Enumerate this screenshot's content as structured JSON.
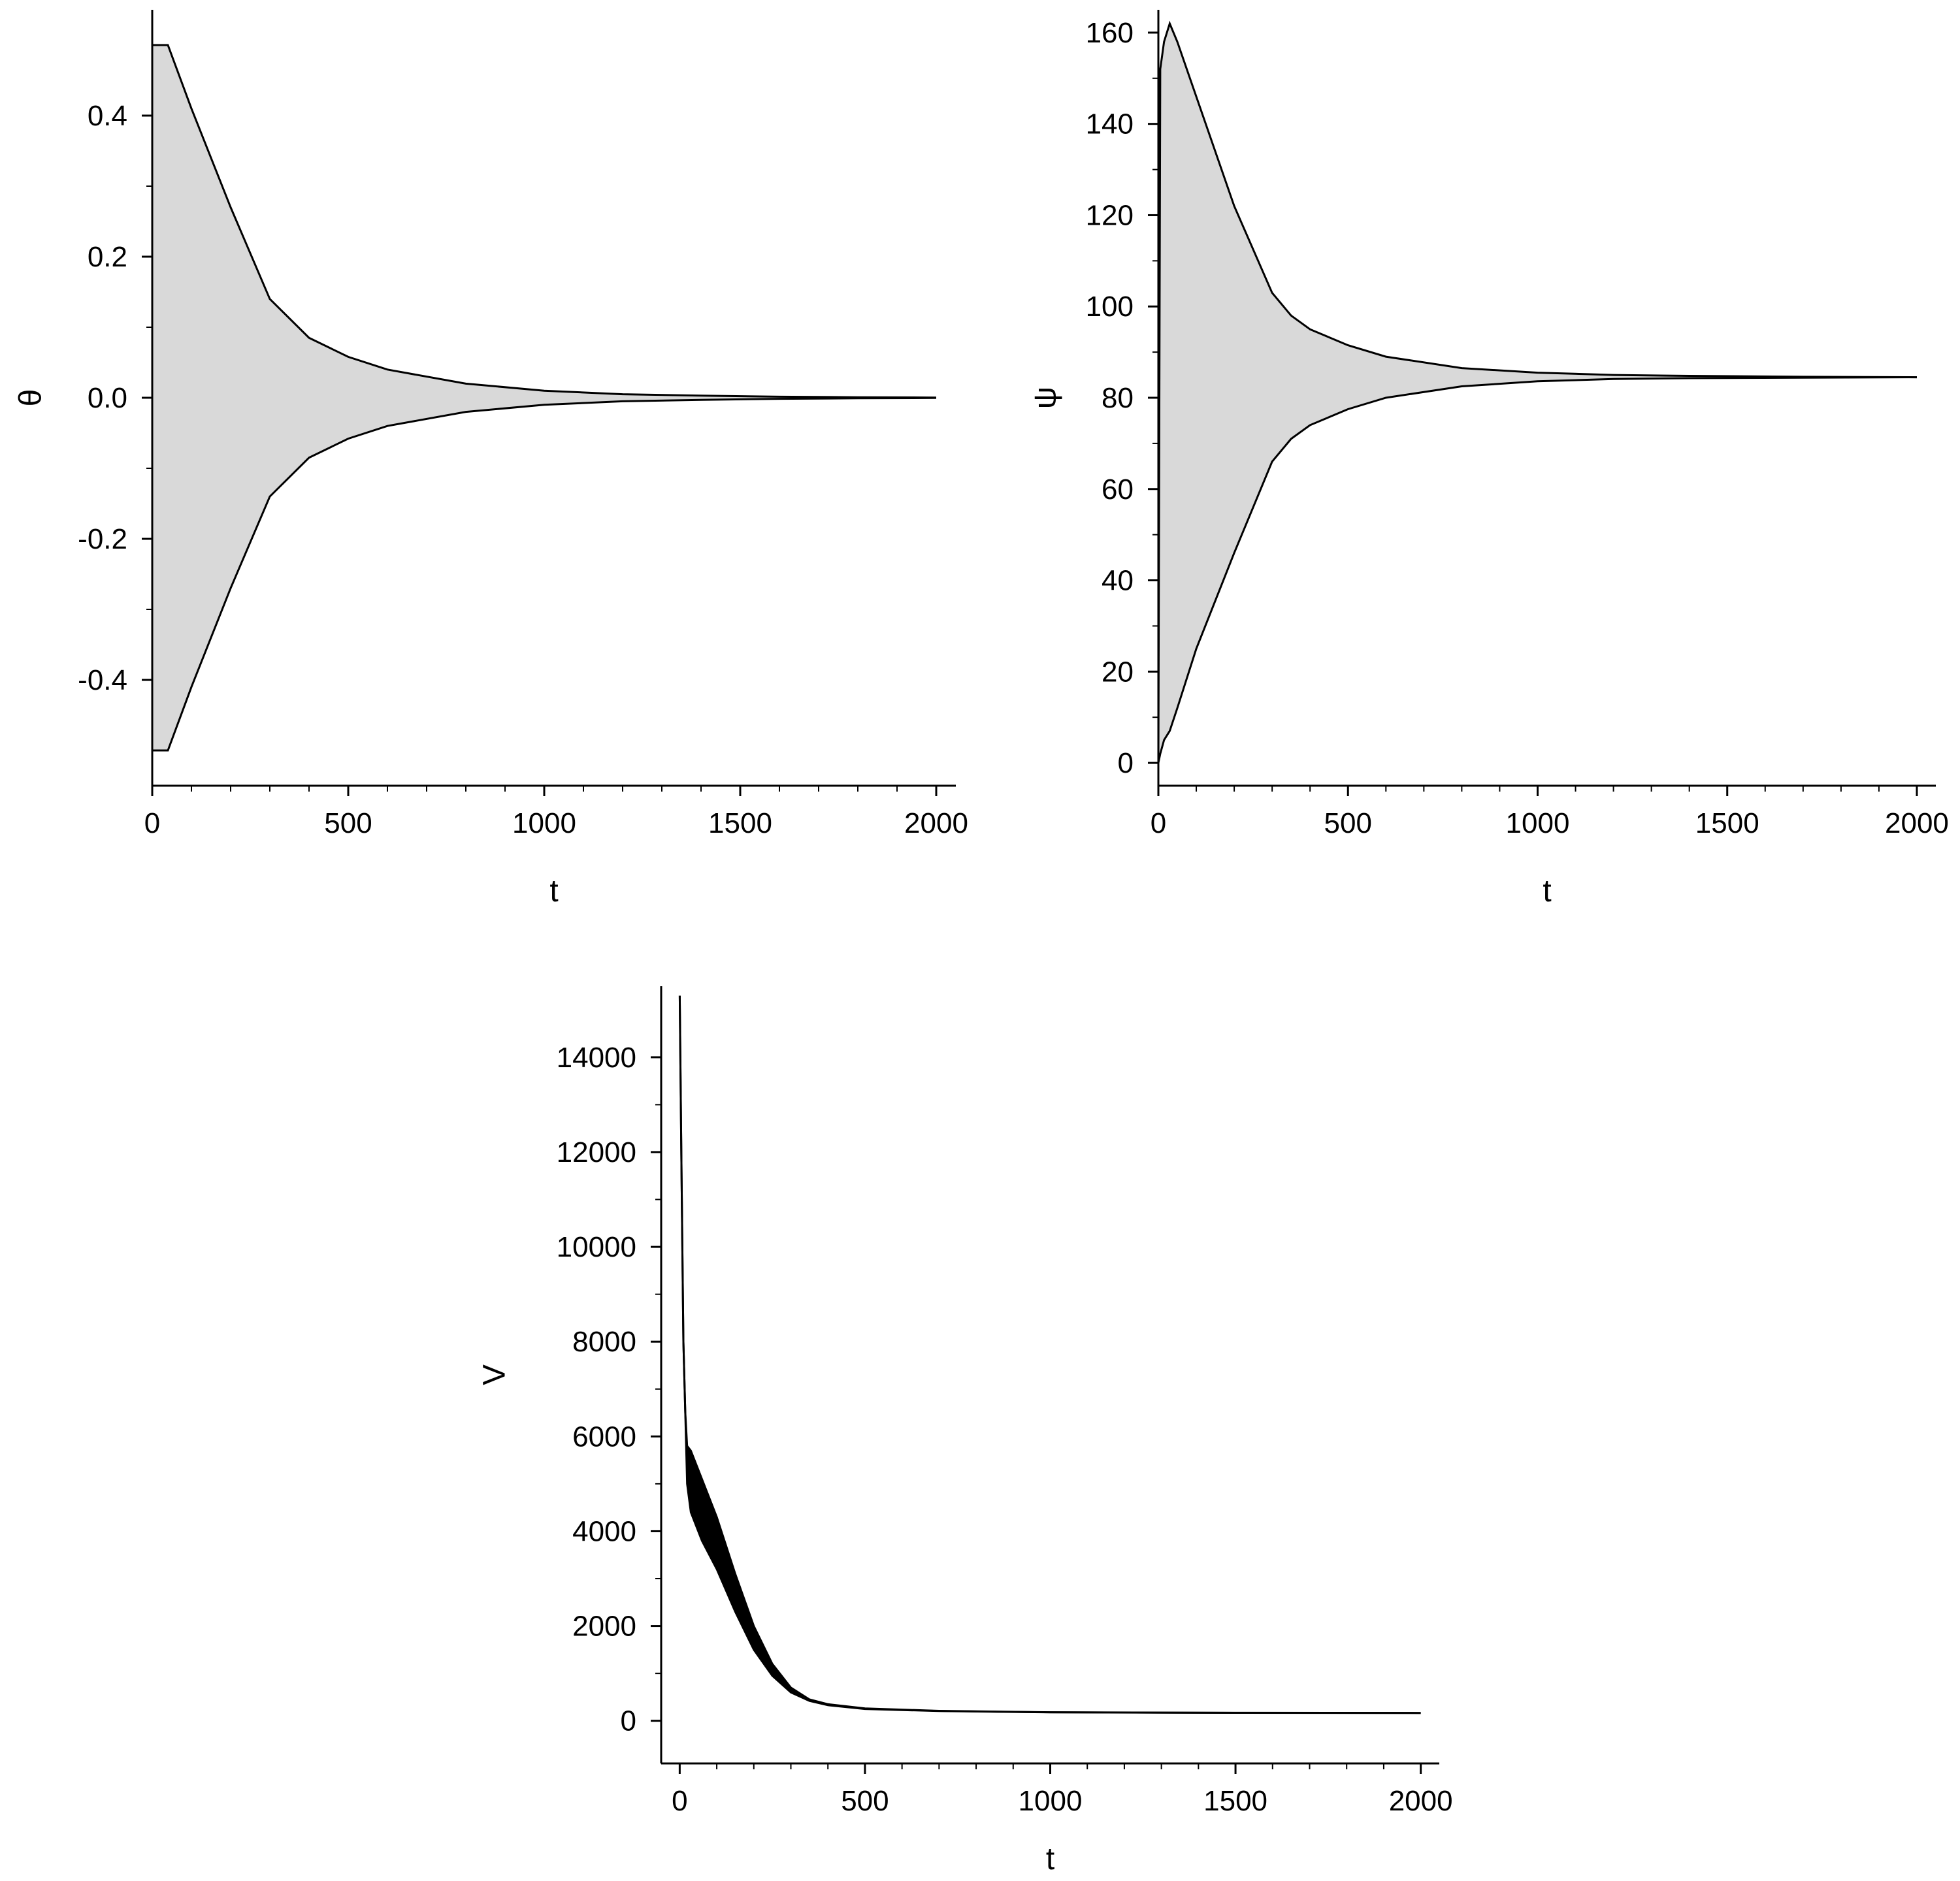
{
  "chart_data": [
    {
      "type": "area",
      "id": "theta",
      "xlabel": "t",
      "ylabel": "θ",
      "xlim": [
        0,
        2050
      ],
      "ylim": [
        -0.55,
        0.55
      ],
      "x_ticks": [
        0,
        500,
        1000,
        1500,
        2000
      ],
      "x_tick_labels": [
        "0",
        "500",
        "1000",
        "1500",
        "2000"
      ],
      "y_ticks": [
        -0.4,
        -0.2,
        0.0,
        0.2,
        0.4
      ],
      "y_tick_labels": [
        "-0.4",
        "-0.2",
        "0.0",
        "0.2",
        "0.4"
      ],
      "fill_color": "#d9d9d9",
      "line_color": "#000000",
      "grid": false,
      "series": [
        {
          "role": "upper-envelope",
          "x": [
            0,
            10,
            40,
            100,
            200,
            300,
            400,
            500,
            600,
            800,
            1000,
            1200,
            1400,
            1600,
            1800,
            2000
          ],
          "values": [
            0.5,
            0.5,
            0.5,
            0.41,
            0.27,
            0.14,
            0.085,
            0.058,
            0.04,
            0.02,
            0.01,
            0.005,
            0.003,
            0.0015,
            0.0007,
            0.0003
          ]
        },
        {
          "role": "lower-envelope",
          "x": [
            0,
            10,
            40,
            100,
            200,
            300,
            400,
            500,
            600,
            800,
            1000,
            1200,
            1400,
            1600,
            1800,
            2000
          ],
          "values": [
            -0.5,
            -0.5,
            -0.5,
            -0.41,
            -0.27,
            -0.14,
            -0.085,
            -0.058,
            -0.04,
            -0.02,
            -0.01,
            -0.005,
            -0.003,
            -0.0015,
            -0.0007,
            -0.0003
          ]
        }
      ]
    },
    {
      "type": "area",
      "id": "psi",
      "xlabel": "t",
      "ylabel": "ψ",
      "xlim": [
        0,
        2050
      ],
      "ylim": [
        -5,
        165
      ],
      "x_ticks": [
        0,
        500,
        1000,
        1500,
        2000
      ],
      "x_tick_labels": [
        "0",
        "500",
        "1000",
        "1500",
        "2000"
      ],
      "y_ticks": [
        0,
        20,
        40,
        60,
        80,
        100,
        120,
        140,
        160
      ],
      "y_tick_labels": [
        "0",
        "20",
        "40",
        "60",
        "80",
        "100",
        "120",
        "140",
        "160"
      ],
      "fill_color": "#d9d9d9",
      "line_color": "#000000",
      "grid": false,
      "series": [
        {
          "role": "upper-envelope",
          "x": [
            0,
            5,
            15,
            30,
            50,
            100,
            200,
            300,
            350,
            400,
            500,
            600,
            800,
            1000,
            1200,
            1400,
            1700,
            2000
          ],
          "values": [
            0,
            152,
            158,
            162,
            158,
            146,
            122,
            103,
            98,
            95,
            91.5,
            89,
            86.5,
            85.5,
            85,
            84.8,
            84.6,
            84.5
          ]
        },
        {
          "role": "lower-envelope",
          "x": [
            0,
            5,
            15,
            30,
            50,
            100,
            200,
            300,
            350,
            400,
            500,
            600,
            800,
            1000,
            1200,
            1400,
            1700,
            2000
          ],
          "values": [
            0,
            2,
            5,
            7,
            12,
            25,
            46,
            66,
            71,
            74,
            77.5,
            80,
            82.5,
            83.6,
            84.1,
            84.3,
            84.4,
            84.5
          ]
        }
      ]
    },
    {
      "type": "area",
      "id": "V",
      "xlabel": "t",
      "ylabel": "V",
      "xlim": [
        -50,
        2050
      ],
      "ylim": [
        -900,
        15500
      ],
      "x_ticks": [
        0,
        500,
        1000,
        1500,
        2000
      ],
      "x_tick_labels": [
        "0",
        "500",
        "1000",
        "1500",
        "2000"
      ],
      "y_ticks": [
        0,
        2000,
        4000,
        6000,
        8000,
        10000,
        12000,
        14000
      ],
      "y_tick_labels": [
        "0",
        "2000",
        "4000",
        "6000",
        "8000",
        "10000",
        "12000",
        "14000"
      ],
      "fill_color": "#000000",
      "line_color": "#000000",
      "grid": false,
      "series": [
        {
          "role": "upper-envelope",
          "x": [
            0,
            5,
            10,
            15,
            20,
            30,
            60,
            100,
            150,
            200,
            250,
            300,
            350,
            400,
            500,
            700,
            1000,
            1500,
            2000
          ],
          "values": [
            15300,
            11500,
            8000,
            6500,
            5800,
            5700,
            5100,
            4300,
            3100,
            2000,
            1200,
            700,
            450,
            350,
            260,
            210,
            180,
            170,
            165
          ]
        },
        {
          "role": "lower-envelope",
          "x": [
            0,
            5,
            10,
            15,
            20,
            30,
            60,
            100,
            150,
            200,
            250,
            300,
            350,
            400,
            500,
            700,
            1000,
            1500,
            2000
          ],
          "values": [
            15300,
            11500,
            8000,
            6500,
            5000,
            4400,
            3800,
            3200,
            2300,
            1500,
            950,
            600,
            420,
            330,
            250,
            205,
            178,
            168,
            165
          ]
        }
      ]
    }
  ]
}
